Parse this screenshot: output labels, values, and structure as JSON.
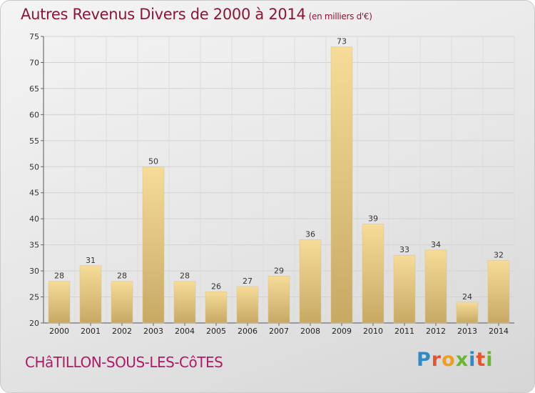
{
  "chart": {
    "title": "Autres Revenus Divers de 2000 à 2014",
    "subtitle": "(en milliers d'€)",
    "commune": "CHâTILLON-SOUS-LES-CôTES"
  },
  "brand": {
    "letters": [
      "P",
      "r",
      "o",
      "x",
      "i",
      "t",
      "i"
    ],
    "colors": [
      "#2e8bc9",
      "#e8542c",
      "#f39c1d",
      "#6ab633",
      "#2e8bc9",
      "#e8542c",
      "#6ab633"
    ]
  },
  "colors": {
    "title": "#8a1737",
    "commune": "#b01a66",
    "bar_light": "#f6dc98",
    "bar_dark": "#c7a964"
  },
  "chart_data": {
    "type": "bar",
    "categories": [
      "2000",
      "2001",
      "2002",
      "2003",
      "2004",
      "2005",
      "2006",
      "2007",
      "2008",
      "2009",
      "2010",
      "2011",
      "2012",
      "2013",
      "2014"
    ],
    "values": [
      28,
      31,
      28,
      50,
      28,
      26,
      27,
      29,
      36,
      73,
      39,
      33,
      34,
      24,
      32
    ],
    "title": "Autres Revenus Divers de 2000 à 2014",
    "subtitle": "(en milliers d'€)",
    "ylim": [
      20,
      75
    ],
    "yticks": [
      20,
      25,
      30,
      35,
      40,
      45,
      50,
      55,
      60,
      65,
      70,
      75
    ],
    "grid": true
  }
}
